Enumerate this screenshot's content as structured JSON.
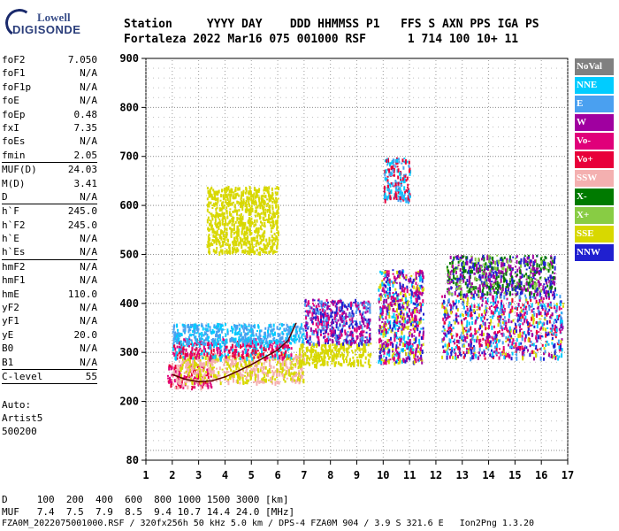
{
  "logo": {
    "line1": "Lowell",
    "line2": "DIGISONDE"
  },
  "header": {
    "line1": "Station     YYYY DAY    DDD HHMMSS P1   FFS S AXN PPS IGA PS",
    "line2": "Fortaleza 2022 Mar16 075 001000 RSF      1 714 100 10+ 11"
  },
  "params": [
    {
      "k": "foF2",
      "v": "7.050"
    },
    {
      "k": "foF1",
      "v": "N/A"
    },
    {
      "k": "foF1p",
      "v": "N/A"
    },
    {
      "k": "foE",
      "v": "N/A"
    },
    {
      "k": "foEp",
      "v": "0.48"
    },
    {
      "k": "fxI",
      "v": "7.35"
    },
    {
      "k": "foEs",
      "v": "N/A"
    },
    {
      "k": "fmin",
      "v": "2.05"
    },
    {
      "sep": true
    },
    {
      "k": "MUF(D)",
      "v": "24.03"
    },
    {
      "k": "M(D)",
      "v": "3.41"
    },
    {
      "k": "D",
      "v": "N/A"
    },
    {
      "sep": true
    },
    {
      "k": "h`F",
      "v": "245.0"
    },
    {
      "k": "h`F2",
      "v": "245.0"
    },
    {
      "k": "h`E",
      "v": "N/A"
    },
    {
      "k": "h`Es",
      "v": "N/A"
    },
    {
      "sep": true
    },
    {
      "k": "hmF2",
      "v": "N/A"
    },
    {
      "k": "hmF1",
      "v": "N/A"
    },
    {
      "k": "hmE",
      "v": "110.0"
    },
    {
      "k": "yF2",
      "v": "N/A"
    },
    {
      "k": "yF1",
      "v": "N/A"
    },
    {
      "k": "yE",
      "v": "20.0"
    },
    {
      "k": "B0",
      "v": "N/A"
    },
    {
      "k": "B1",
      "v": "N/A"
    },
    {
      "sep": true
    },
    {
      "k": "C-level",
      "v": "55"
    },
    {
      "sep": true
    }
  ],
  "auto": {
    "l1": "Auto:",
    "l2": "Artist5",
    "l3": "500200"
  },
  "legend": [
    {
      "label": "NoVal",
      "color": "#808080"
    },
    {
      "label": "NNE",
      "color": "#00ccff"
    },
    {
      "label": "E",
      "color": "#4aa0f0"
    },
    {
      "label": "W",
      "color": "#a000a0"
    },
    {
      "label": "Vo-",
      "color": "#e0007a"
    },
    {
      "label": "Vo+",
      "color": "#e8003a"
    },
    {
      "label": "SSW",
      "color": "#f4b0b0"
    },
    {
      "label": "X-",
      "color": "#007a00"
    },
    {
      "label": "X+",
      "color": "#88cc44"
    },
    {
      "label": "SSE",
      "color": "#d8d800"
    },
    {
      "label": "NNW",
      "color": "#2020d0"
    }
  ],
  "bottom": {
    "dline": "D     100  200  400  600  800 1000 1500 3000 [km]",
    "mline": "MUF   7.4  7.5  7.9  8.5  9.4 10.7 14.4 24.0 [MHz]",
    "fline": "FZA0M_2022075001000.RSF / 320fx256h 50 kHz 5.0 km / DPS-4 FZA0M 904 / 3.9 S 321.6 E   Ion2Png 1.3.20"
  },
  "chart_data": {
    "type": "scatter",
    "xlabel": "",
    "ylabel": "",
    "xlim": [
      1,
      17
    ],
    "ylim": [
      80,
      900
    ],
    "xticks": [
      1,
      2,
      3,
      4,
      5,
      6,
      7,
      8,
      9,
      10,
      11,
      12,
      13,
      14,
      15,
      16,
      17
    ],
    "yticks": [
      80,
      200,
      300,
      400,
      500,
      600,
      700,
      800,
      900
    ],
    "grid": true,
    "echo_regions": [
      {
        "x": [
          1.8,
          3.5
        ],
        "y": [
          230,
          280
        ],
        "colors": [
          "#e8003a",
          "#e0007a",
          "#f4b0b0"
        ]
      },
      {
        "x": [
          2.2,
          7.0
        ],
        "y": [
          240,
          300
        ],
        "colors": [
          "#d8d800",
          "#f4b0b0"
        ]
      },
      {
        "x": [
          2.0,
          6.5
        ],
        "y": [
          290,
          330
        ],
        "colors": [
          "#e0007a",
          "#e8003a",
          "#00ccff"
        ]
      },
      {
        "x": [
          2.0,
          7.0
        ],
        "y": [
          320,
          360
        ],
        "colors": [
          "#4aa0f0",
          "#00ccff"
        ]
      },
      {
        "x": [
          3.3,
          6.0
        ],
        "y": [
          505,
          640
        ],
        "colors": [
          "#d8d800"
        ]
      },
      {
        "x": [
          6.8,
          9.5
        ],
        "y": [
          275,
          320
        ],
        "colors": [
          "#d8d800"
        ]
      },
      {
        "x": [
          7.0,
          9.5
        ],
        "y": [
          320,
          410
        ],
        "colors": [
          "#2020d0",
          "#e0007a",
          "#4aa0f0",
          "#a000a0"
        ]
      },
      {
        "x": [
          9.8,
          11.5
        ],
        "y": [
          280,
          470
        ],
        "colors": [
          "#2020d0",
          "#a000a0",
          "#00ccff",
          "#d8d800",
          "#e0007a"
        ]
      },
      {
        "x": [
          10.0,
          11.0
        ],
        "y": [
          610,
          700
        ],
        "colors": [
          "#e8003a",
          "#00ccff",
          "#4aa0f0"
        ]
      },
      {
        "x": [
          12.2,
          16.8
        ],
        "y": [
          290,
          420
        ],
        "colors": [
          "#2020d0",
          "#a000a0",
          "#e0007a",
          "#e8003a",
          "#4aa0f0",
          "#d8d800",
          "#00ccff"
        ]
      },
      {
        "x": [
          12.4,
          16.5
        ],
        "y": [
          420,
          500
        ],
        "colors": [
          "#007a00",
          "#a000a0",
          "#2020d0",
          "#88cc44"
        ]
      }
    ],
    "trace": [
      [
        2.0,
        255
      ],
      [
        2.5,
        245
      ],
      [
        3.0,
        240
      ],
      [
        3.5,
        242
      ],
      [
        4.0,
        250
      ],
      [
        4.5,
        262
      ],
      [
        5.0,
        275
      ],
      [
        5.5,
        290
      ],
      [
        6.0,
        305
      ],
      [
        6.4,
        325
      ],
      [
        6.7,
        360
      ]
    ]
  }
}
